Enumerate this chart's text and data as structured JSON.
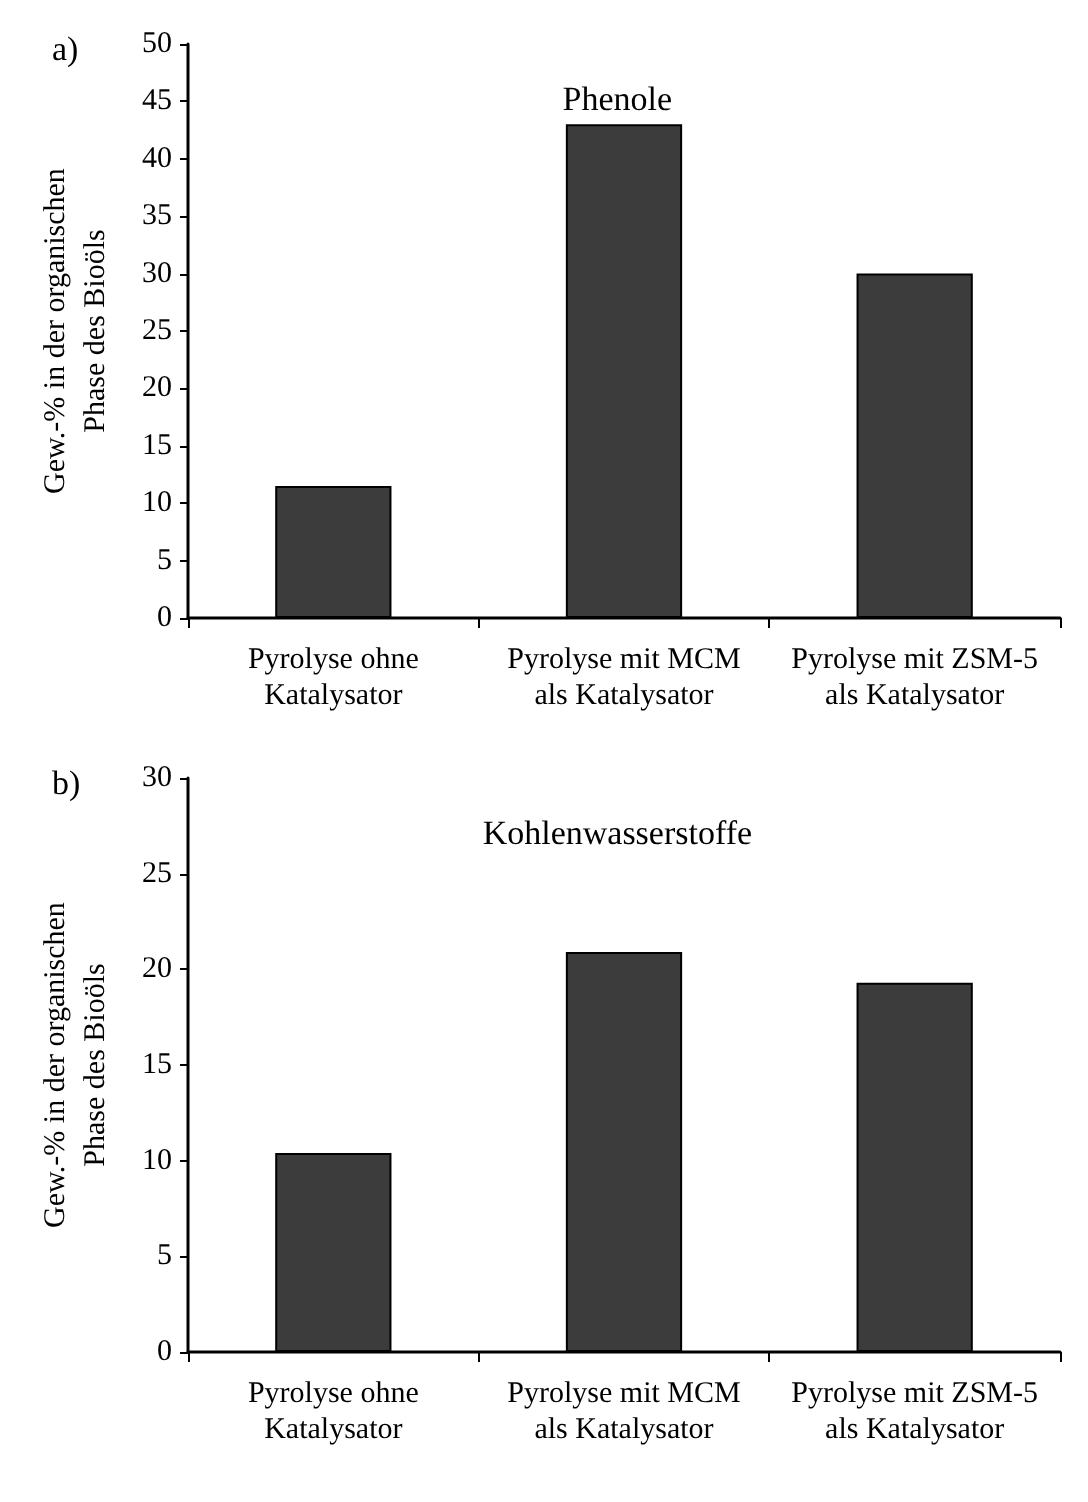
{
  "chart_data": [
    {
      "type": "bar",
      "title": "Phenole",
      "ylabel": "Gew.-% in der organischen\nPhase des Bioöls",
      "annotations": [
        "a)"
      ],
      "categories": [
        "Pyrolyse ohne\nKatalysator",
        "Pyrolyse mit MCM\nals Katalysator",
        "Pyrolyse mit ZSM-5\nals Katalysator"
      ],
      "values": [
        11.5,
        43,
        30
      ],
      "color": "#3c3c3c",
      "ylim": [
        0,
        50
      ],
      "yticks": [
        0,
        5,
        10,
        15,
        20,
        25,
        30,
        35,
        40,
        45,
        50
      ],
      "grid": false
    },
    {
      "type": "bar",
      "title": "Kohlenwasserstoffe",
      "ylabel": "Gew.-% in der organischen\nPhase des Bioöls",
      "annotations": [
        "b)"
      ],
      "categories": [
        "Pyrolyse ohne\nKatalysator",
        "Pyrolyse mit MCM\nals Katalysator",
        "Pyrolyse mit ZSM-5\nals Katalysator"
      ],
      "values": [
        10.4,
        20.9,
        19.3
      ],
      "color": "#3c3c3c",
      "ylim": [
        0,
        30
      ],
      "yticks": [
        0,
        5,
        10,
        15,
        20,
        25,
        30
      ],
      "grid": false
    }
  ]
}
